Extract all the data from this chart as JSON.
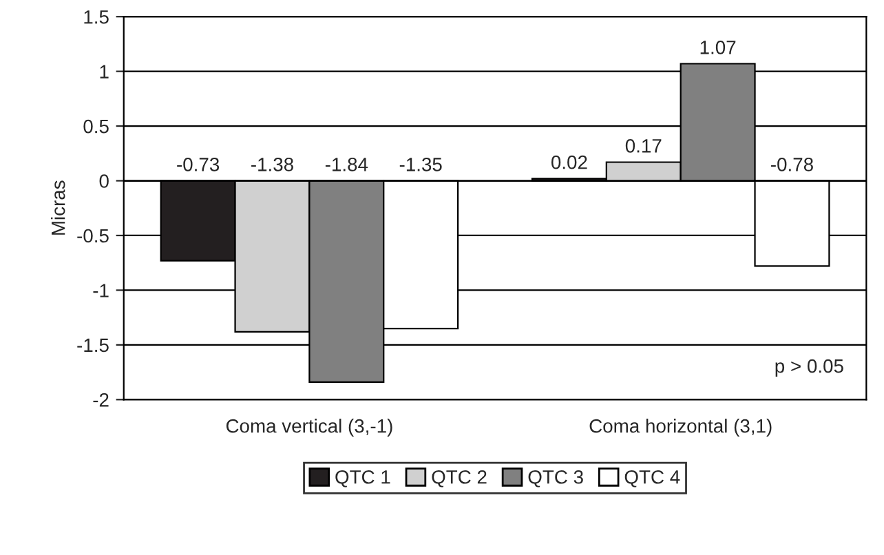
{
  "chart_data": {
    "type": "bar",
    "ylabel": "Micras",
    "categories": [
      "Coma vertical (3,-1)",
      "Coma horizontal (3,1)"
    ],
    "series": [
      {
        "name": "QTC 1",
        "color": "#231f20",
        "values": [
          -0.73,
          0.02
        ]
      },
      {
        "name": "QTC 2",
        "color": "#d0d0d0",
        "values": [
          -1.38,
          0.17
        ]
      },
      {
        "name": "QTC 3",
        "color": "#808080",
        "values": [
          -1.84,
          1.07
        ]
      },
      {
        "name": "QTC 4",
        "color": "#ffffff",
        "values": [
          -1.35,
          -0.78
        ]
      }
    ],
    "ylim": [
      -2,
      1.5
    ],
    "yticks": [
      -2,
      -1.5,
      -1,
      -0.5,
      0,
      0.5,
      1,
      1.5
    ],
    "grid": "y",
    "legend": "bottom",
    "data_labels": true,
    "annotations": [
      "p > 0.05"
    ]
  }
}
